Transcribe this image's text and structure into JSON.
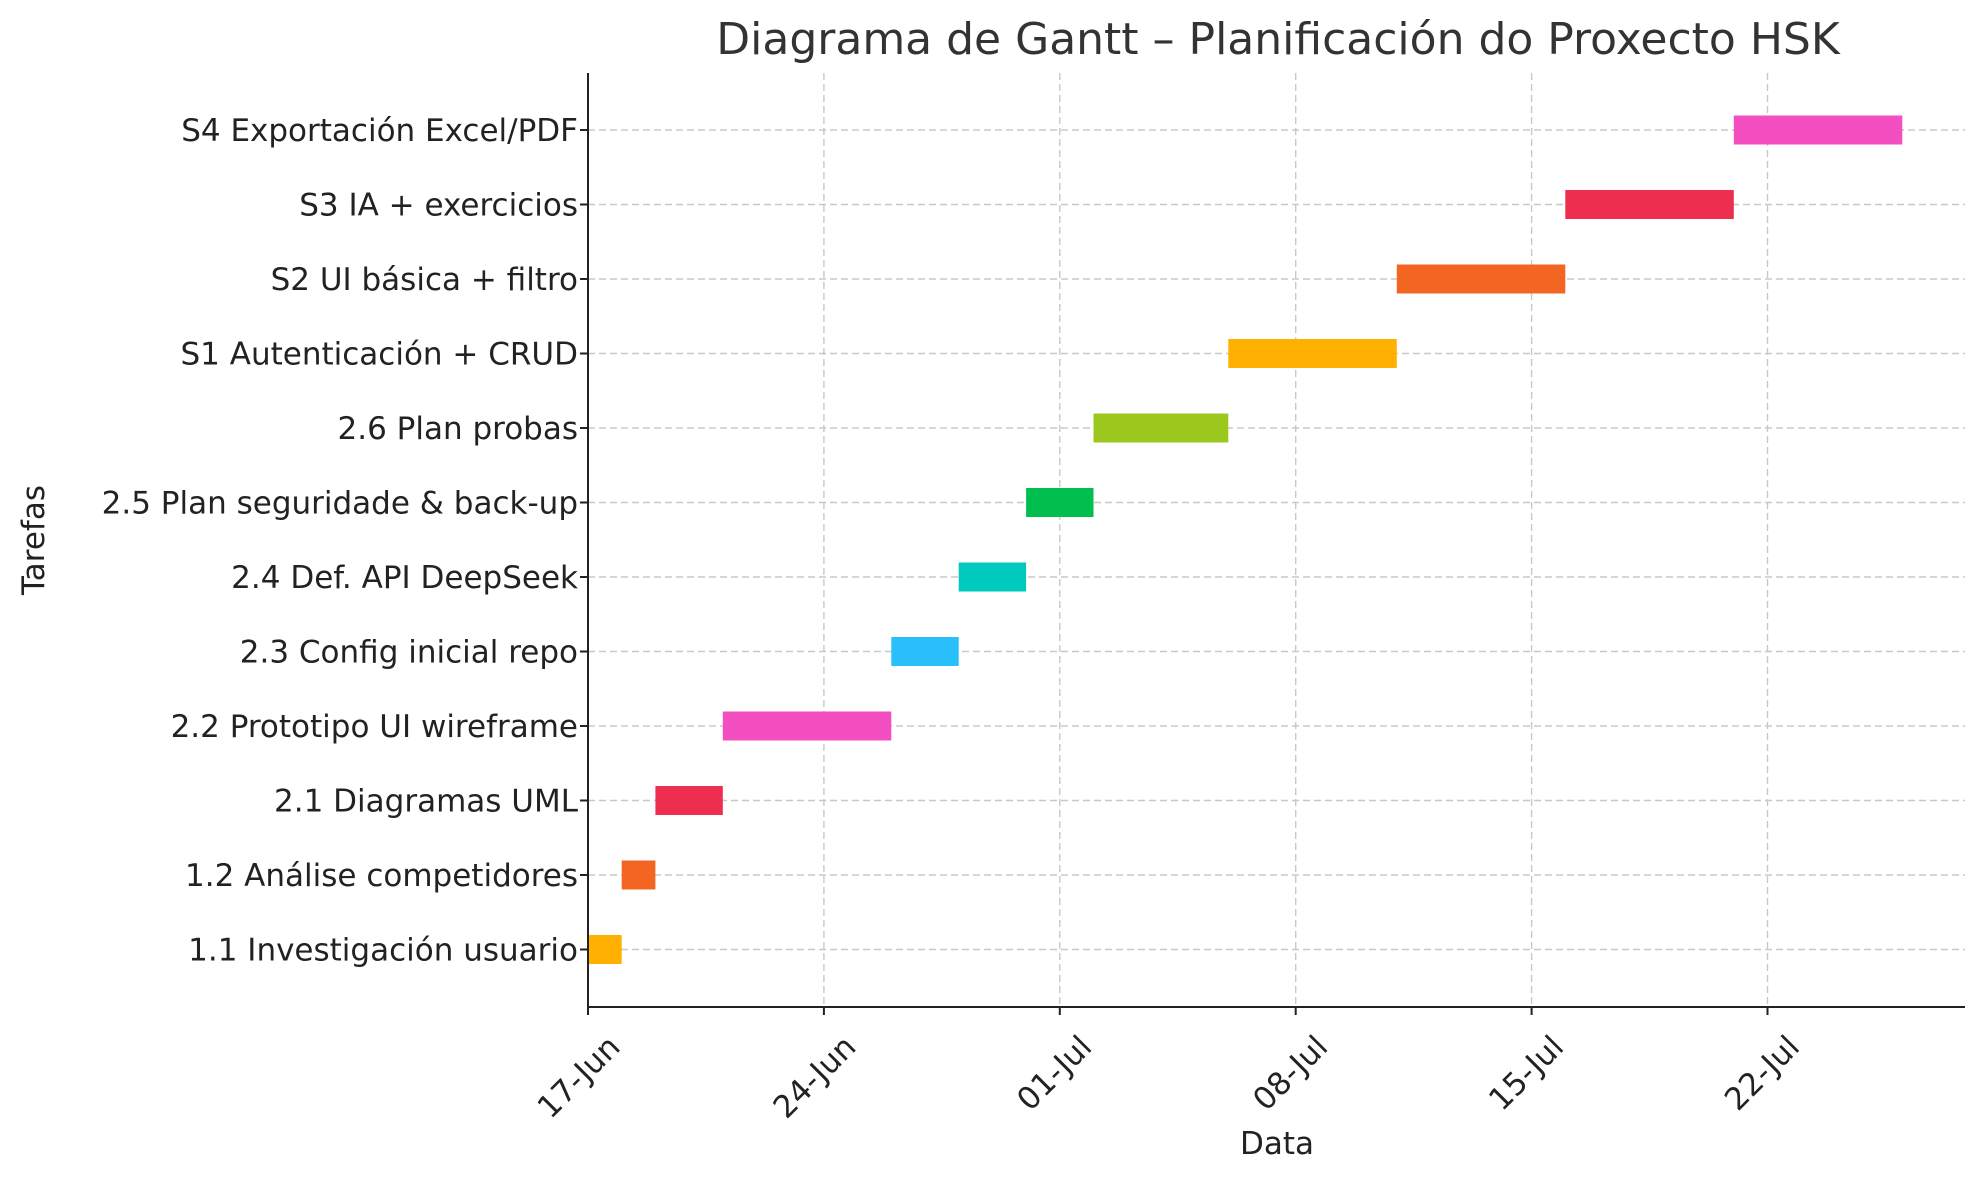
{
  "chart_data": {
    "type": "gantt",
    "title": "Diagrama de Gantt – Planificación do Proxecto HSK",
    "xlabel": "Data",
    "ylabel": "Tarefas",
    "xlim": [
      "2024-06-17",
      "2024-07-28"
    ],
    "x_ticks": [
      {
        "date": "2024-06-17",
        "label": "17-Jun"
      },
      {
        "date": "2024-06-24",
        "label": "24-Jun"
      },
      {
        "date": "2024-07-01",
        "label": "01-Jul"
      },
      {
        "date": "2024-07-08",
        "label": "08-Jul"
      },
      {
        "date": "2024-07-15",
        "label": "15-Jul"
      },
      {
        "date": "2024-07-22",
        "label": "22-Jul"
      }
    ],
    "grid": true,
    "tasks": [
      {
        "name": "1.1 Investigación usuario",
        "start": "2024-06-17",
        "end": "2024-06-18",
        "color": "#FFB000"
      },
      {
        "name": "1.2 Análise competidores",
        "start": "2024-06-18",
        "end": "2024-06-19",
        "color": "#F26522"
      },
      {
        "name": "2.1 Diagramas UML",
        "start": "2024-06-19",
        "end": "2024-06-21",
        "color": "#EE2E4F"
      },
      {
        "name": "2.2 Prototipo UI wireframe",
        "start": "2024-06-21",
        "end": "2024-06-26",
        "color": "#F44FC0"
      },
      {
        "name": "2.3 Config inicial repo",
        "start": "2024-06-26",
        "end": "2024-06-28",
        "color": "#28BFFB"
      },
      {
        "name": "2.4 Def. API DeepSeek",
        "start": "2024-06-28",
        "end": "2024-06-30",
        "color": "#00C9BE"
      },
      {
        "name": "2.5 Plan seguridade & back-up",
        "start": "2024-06-30",
        "end": "2024-07-02",
        "color": "#00BF4F"
      },
      {
        "name": "2.6 Plan probas",
        "start": "2024-07-02",
        "end": "2024-07-06",
        "color": "#9CC81E"
      },
      {
        "name": "S1 Autenticación + CRUD",
        "start": "2024-07-06",
        "end": "2024-07-11",
        "color": "#FFB000"
      },
      {
        "name": "S2 UI básica + filtro",
        "start": "2024-07-11",
        "end": "2024-07-16",
        "color": "#F26522"
      },
      {
        "name": "S3 IA + exercicios",
        "start": "2024-07-16",
        "end": "2024-07-21",
        "color": "#EE2E4F"
      },
      {
        "name": "S4 Exportación Excel/PDF",
        "start": "2024-07-21",
        "end": "2024-07-26",
        "color": "#F44FC0"
      }
    ]
  }
}
